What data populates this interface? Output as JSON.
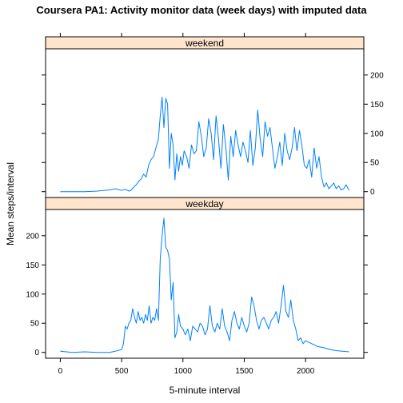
{
  "chart_data": {
    "type": "line",
    "title": "Coursera PA1: Activity monitor data (week days) with imputed data",
    "xlabel": "5-minute interval",
    "ylabel": "Mean steps/interval",
    "xlim": [
      -120,
      2475
    ],
    "ylim": [
      -10,
      245
    ],
    "x_ticks": [
      0,
      500,
      1000,
      1500,
      2000
    ],
    "y_ticks": [
      0,
      50,
      100,
      150,
      200
    ],
    "grid": false,
    "colors": {
      "line": "#0080ff",
      "strip_fill": "#ffe5cc",
      "border": "#000000"
    },
    "panels": [
      {
        "strip_label": "weekend",
        "y_tick_side": "right",
        "series": [
          {
            "x": [
              0,
              100,
              200,
              300,
              400,
              450,
              500,
              530,
              560,
              580,
              600,
              620,
              640,
              660,
              680,
              700,
              720,
              740,
              760,
              780,
              800,
              815,
              830,
              845,
              860,
              875,
              890,
              905,
              920,
              935,
              950,
              965,
              980,
              995,
              1010,
              1030,
              1050,
              1070,
              1090,
              1110,
              1130,
              1150,
              1170,
              1190,
              1210,
              1230,
              1250,
              1270,
              1290,
              1310,
              1330,
              1350,
              1370,
              1390,
              1410,
              1430,
              1450,
              1470,
              1490,
              1510,
              1530,
              1550,
              1570,
              1590,
              1610,
              1630,
              1650,
              1670,
              1690,
              1710,
              1730,
              1750,
              1770,
              1790,
              1810,
              1830,
              1850,
              1870,
              1890,
              1910,
              1930,
              1950,
              1970,
              1990,
              2010,
              2030,
              2050,
              2070,
              2090,
              2110,
              2130,
              2150,
              2170,
              2190,
              2210,
              2230,
              2250,
              2270,
              2290,
              2310,
              2330,
              2355
            ],
            "y": [
              0,
              0,
              0,
              1,
              3,
              5,
              2,
              4,
              1,
              3,
              8,
              12,
              18,
              22,
              30,
              25,
              45,
              55,
              60,
              75,
              90,
              130,
              162,
              110,
              160,
              150,
              40,
              100,
              80,
              20,
              65,
              35,
              60,
              45,
              70,
              60,
              40,
              80,
              65,
              70,
              120,
              95,
              60,
              75,
              125,
              100,
              55,
              130,
              90,
              40,
              115,
              75,
              20,
              95,
              60,
              105,
              80,
              60,
              85,
              70,
              50,
              105,
              45,
              75,
              140,
              90,
              60,
              120,
              95,
              110,
              75,
              40,
              60,
              85,
              45,
              100,
              70,
              55,
              75,
              110,
              70,
              105,
              80,
              45,
              40,
              55,
              25,
              75,
              40,
              60,
              25,
              8,
              15,
              5,
              10,
              15,
              5,
              10,
              3,
              5,
              12,
              2
            ]
          }
        ]
      },
      {
        "strip_label": "weekday",
        "y_tick_side": "left",
        "series": [
          {
            "x": [
              0,
              100,
              200,
              300,
              400,
              450,
              500,
              515,
              530,
              545,
              560,
              575,
              590,
              605,
              620,
              635,
              650,
              665,
              680,
              695,
              710,
              725,
              740,
              755,
              770,
              785,
              800,
              815,
              830,
              845,
              860,
              875,
              890,
              905,
              920,
              935,
              950,
              965,
              980,
              1000,
              1020,
              1040,
              1060,
              1080,
              1100,
              1120,
              1140,
              1160,
              1180,
              1200,
              1220,
              1240,
              1260,
              1280,
              1300,
              1320,
              1340,
              1360,
              1380,
              1400,
              1420,
              1440,
              1460,
              1480,
              1500,
              1520,
              1540,
              1560,
              1580,
              1600,
              1620,
              1640,
              1660,
              1680,
              1700,
              1720,
              1740,
              1760,
              1780,
              1800,
              1820,
              1840,
              1860,
              1880,
              1900,
              1920,
              1940,
              1960,
              1980,
              2000,
              2050,
              2100,
              2150,
              2200,
              2250,
              2300,
              2355
            ],
            "y": [
              2,
              0,
              1,
              0,
              0,
              2,
              5,
              15,
              45,
              40,
              50,
              55,
              75,
              60,
              50,
              70,
              55,
              60,
              50,
              65,
              55,
              80,
              50,
              60,
              55,
              75,
              55,
              160,
              200,
              230,
              180,
              175,
              160,
              90,
              120,
              25,
              35,
              65,
              45,
              40,
              30,
              40,
              20,
              45,
              40,
              35,
              50,
              45,
              30,
              40,
              80,
              45,
              35,
              50,
              40,
              75,
              45,
              35,
              20,
              55,
              70,
              50,
              40,
              60,
              45,
              35,
              50,
              95,
              80,
              55,
              40,
              55,
              60,
              50,
              40,
              55,
              60,
              70,
              50,
              80,
              115,
              70,
              60,
              90,
              55,
              40,
              20,
              25,
              15,
              20,
              15,
              10,
              8,
              5,
              3,
              2,
              1
            ]
          }
        ]
      }
    ]
  }
}
